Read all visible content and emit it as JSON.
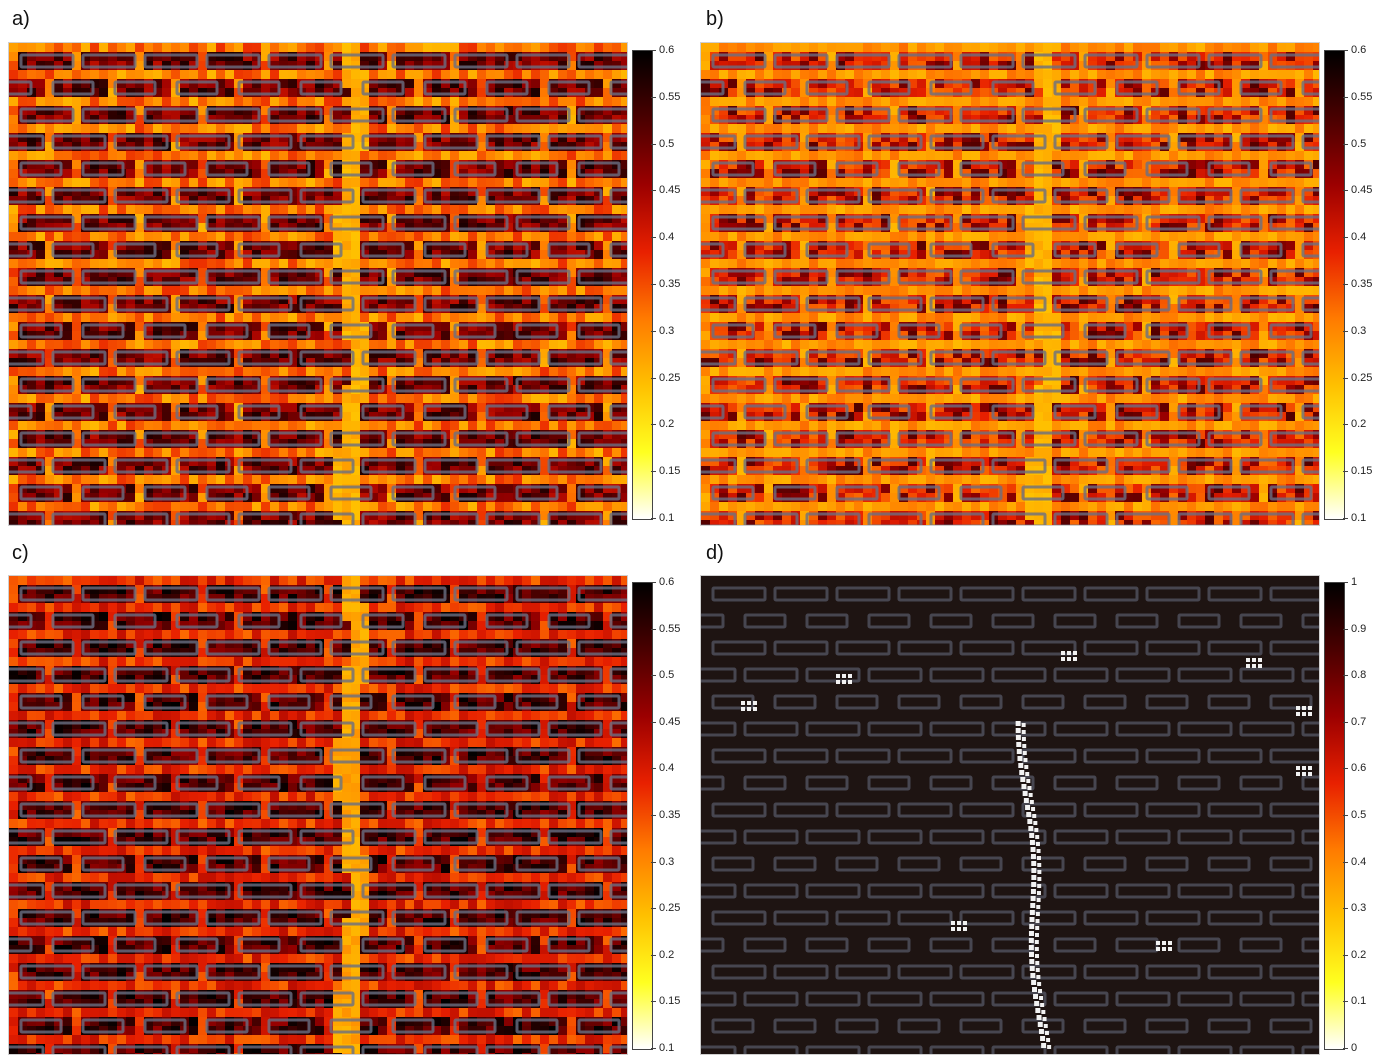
{
  "panels": [
    {
      "label": "a)",
      "scheme": "hot",
      "colorbar": {
        "min": 0.1,
        "max": 0.6,
        "ticks": [
          "0.6",
          "0.55",
          "0.5",
          "0.45",
          "0.4",
          "0.35",
          "0.3",
          "0.25",
          "0.2",
          "0.15",
          "0.1"
        ]
      }
    },
    {
      "label": "b)",
      "scheme": "warm",
      "colorbar": {
        "min": 0.1,
        "max": 0.6,
        "ticks": [
          "0.6",
          "0.55",
          "0.5",
          "0.45",
          "0.4",
          "0.35",
          "0.3",
          "0.25",
          "0.2",
          "0.15",
          "0.1"
        ]
      }
    },
    {
      "label": "c)",
      "scheme": "dark",
      "colorbar": {
        "min": 0.1,
        "max": 0.6,
        "ticks": [
          "0.6",
          "0.55",
          "0.5",
          "0.45",
          "0.4",
          "0.35",
          "0.3",
          "0.25",
          "0.2",
          "0.15",
          "0.1"
        ]
      }
    },
    {
      "label": "d)",
      "scheme": "binary",
      "colorbar": {
        "min": 0,
        "max": 1,
        "ticks": [
          "1",
          "0.9",
          "0.8",
          "0.7",
          "0.6",
          "0.5",
          "0.4",
          "0.3",
          "0.2",
          "0.1",
          "0"
        ]
      }
    }
  ],
  "colors": {
    "brick_outline": "#6a7084",
    "mortar_gray": "#6b7080",
    "crack_highlight": "#ffe100",
    "binary_background": "#1e1412",
    "binary_flag": "#f2f2f2"
  },
  "colormap": [
    "#ffffff",
    "#ffff20",
    "#ffc000",
    "#ff7a00",
    "#e82000",
    "#9c0000",
    "#4a0000",
    "#000000"
  ]
}
